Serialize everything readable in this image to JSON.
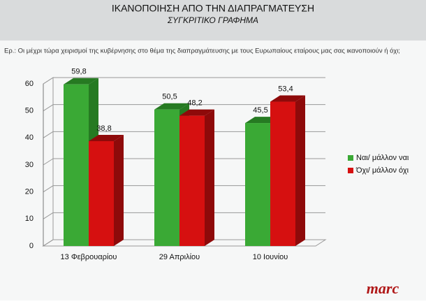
{
  "chart_data": {
    "type": "bar3d",
    "title": "ΙΚΑΝΟΠΟΙΗΣΗ ΑΠΟ ΤΗΝ ΔΙΑΠΡΑΓΜΑΤΕΥΣΗ",
    "subtitle": "ΣΥΓΚΡΙΤΙΚΟ ΓΡΑΦΗΜΑ",
    "question": "Ερ.: Οι μέχρι τώρα χειρισμοί της κυβέρνησης στο θέμα της διαπραγμάτευσης  με τους Ευρωπαίους εταίρους μας σας ικανοποιούν ή όχι;",
    "brand": "marc",
    "categories": [
      "13 Φεβρουαρίου",
      "29 Απριλίου",
      "10 Ιουνίου"
    ],
    "series": [
      {
        "name": "Ναι/ μάλλον ναι",
        "color": "#3aa935",
        "side": "#267a22",
        "values": [
          59.8,
          50.5,
          45.5
        ],
        "value_labels": [
          "59,8",
          "50,5",
          "45,5"
        ]
      },
      {
        "name": "Όχι/ μάλλον όχι",
        "color": "#d61010",
        "side": "#8e0a0a",
        "values": [
          38.8,
          48.2,
          53.4
        ],
        "value_labels": [
          "38,8",
          "48,2",
          "53,4"
        ]
      }
    ],
    "ylim": [
      0,
      60
    ],
    "yticks": [
      0,
      10,
      20,
      30,
      40,
      50,
      60
    ],
    "grid": true,
    "legend": "right"
  }
}
